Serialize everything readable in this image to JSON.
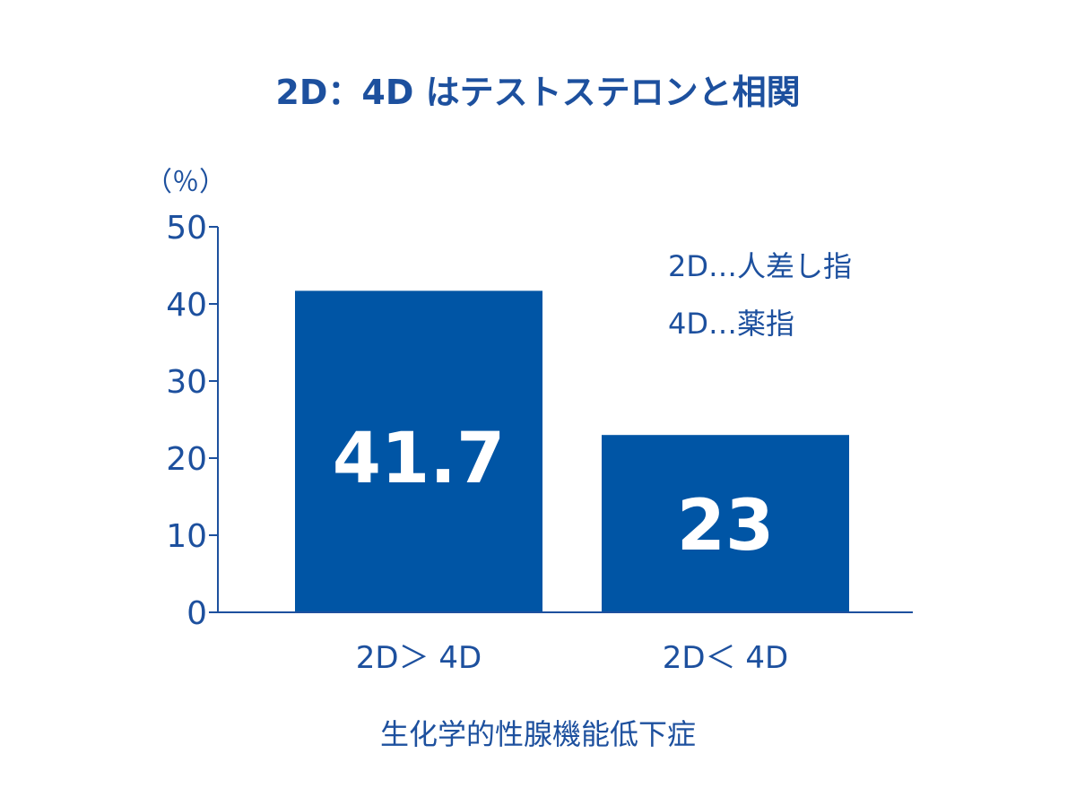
{
  "chart_data": {
    "type": "bar",
    "title": "2D：4D はテストステロンと相関",
    "ylabel": "（％）",
    "xlabel": "生化学的性腺機能低下症",
    "categories": [
      "2D＞ 4D",
      "2D＜ 4D"
    ],
    "values": [
      41.7,
      23
    ],
    "data_labels": [
      "41.7",
      "23"
    ],
    "ylim": [
      0,
      50
    ],
    "yticks": [
      0,
      10,
      20,
      30,
      40,
      50
    ],
    "grid": false,
    "annotations": [
      "2D…人差し指",
      "4D…薬指"
    ],
    "legend": "top-right",
    "colors": {
      "bar": "#0055a5",
      "text": "#1d509e",
      "data_label": "#ffffff"
    }
  }
}
